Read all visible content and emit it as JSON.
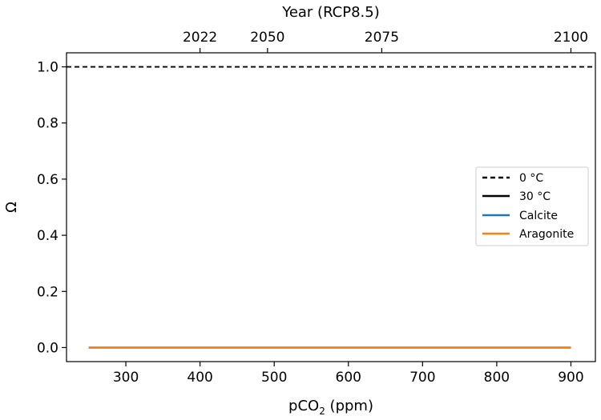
{
  "chart_data": {
    "type": "line",
    "xlabel": "pCO",
    "xlabel_sub": "2",
    "xlabel_unit": " (ppm)",
    "ylabel": "Ω",
    "top_xlabel": "Year (RCP8.5)",
    "xlim": [
      220,
      933
    ],
    "ylim": [
      -0.05,
      1.05
    ],
    "xticks": [
      300,
      400,
      500,
      600,
      700,
      800,
      900
    ],
    "yticks": [
      0.0,
      0.2,
      0.4,
      0.6,
      0.8,
      1.0
    ],
    "top_ticks": [
      {
        "label": "2022",
        "x": 400
      },
      {
        "label": "2050",
        "x": 491
      },
      {
        "label": "2075",
        "x": 645
      },
      {
        "label": "2100",
        "x": 900
      }
    ],
    "reference_line": {
      "y": 1.0,
      "style": "dashed",
      "color": "#000000"
    },
    "series": [
      {
        "name": "Calcite",
        "color": "#1f77b4",
        "x": [
          250,
          900
        ],
        "y": [
          0.0,
          0.0
        ]
      },
      {
        "name": "Aragonite",
        "color": "#ff7f0e",
        "x": [
          250,
          900
        ],
        "y": [
          0.0,
          0.0
        ]
      }
    ],
    "legend": {
      "position": "right",
      "entries": [
        {
          "label": "0 °C",
          "color": "#000000",
          "style": "dashed"
        },
        {
          "label": "30 °C",
          "color": "#000000",
          "style": "solid"
        },
        {
          "label": "Calcite",
          "color": "#1f77b4",
          "style": "solid"
        },
        {
          "label": "Aragonite",
          "color": "#ff7f0e",
          "style": "solid"
        }
      ]
    }
  }
}
